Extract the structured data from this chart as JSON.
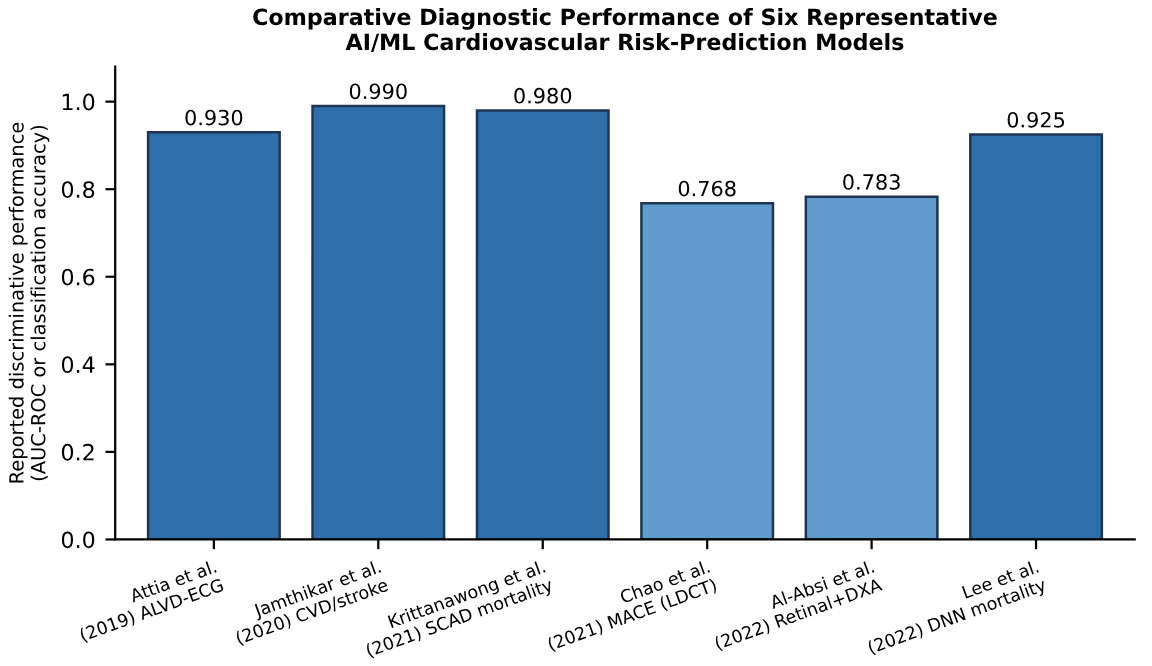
{
  "chart_data": {
    "type": "bar",
    "title": "Comparative Diagnostic Performance of Six Representative\nAI/ML Cardiovascular Risk-Prediction Models",
    "categories": [
      "Attia et al.\n(2019) ALVD-ECG",
      "Jamthikar et al.\n(2020) CVD/stroke",
      "Krittanawong et al.\n(2021) SCAD mortality",
      "Chao et al.\n(2021) MACE (LDCT)",
      "Al-Absi et al.\n(2022) Retinal+DXA",
      "Lee et al.\n(2022) DNN mortality"
    ],
    "values": [
      0.93,
      0.99,
      0.98,
      0.768,
      0.783,
      0.925
    ],
    "value_labels": [
      "0.930",
      "0.990",
      "0.980",
      "0.768",
      "0.783",
      "0.925"
    ],
    "colors": [
      "#2f6fa9",
      "#2f6fa9",
      "#2f6fa9",
      "#5f9ccd",
      "#5f9ccd",
      "#2f6fa9"
    ],
    "ylabel": "Reported discriminative performance\n(AUC-ROC or classification accuracy)",
    "ylim": [
      0,
      1.08
    ],
    "yticks": [
      {
        "value": 0,
        "label": "0.0"
      },
      {
        "value": 0.2,
        "label": "0.2"
      },
      {
        "value": 0.4,
        "label": "0.4"
      },
      {
        "value": 0.6,
        "label": "0.6"
      },
      {
        "value": 0.8,
        "label": "0.8"
      },
      {
        "value": 1,
        "label": "1.0"
      }
    ],
    "grid": false,
    "legend": false
  }
}
